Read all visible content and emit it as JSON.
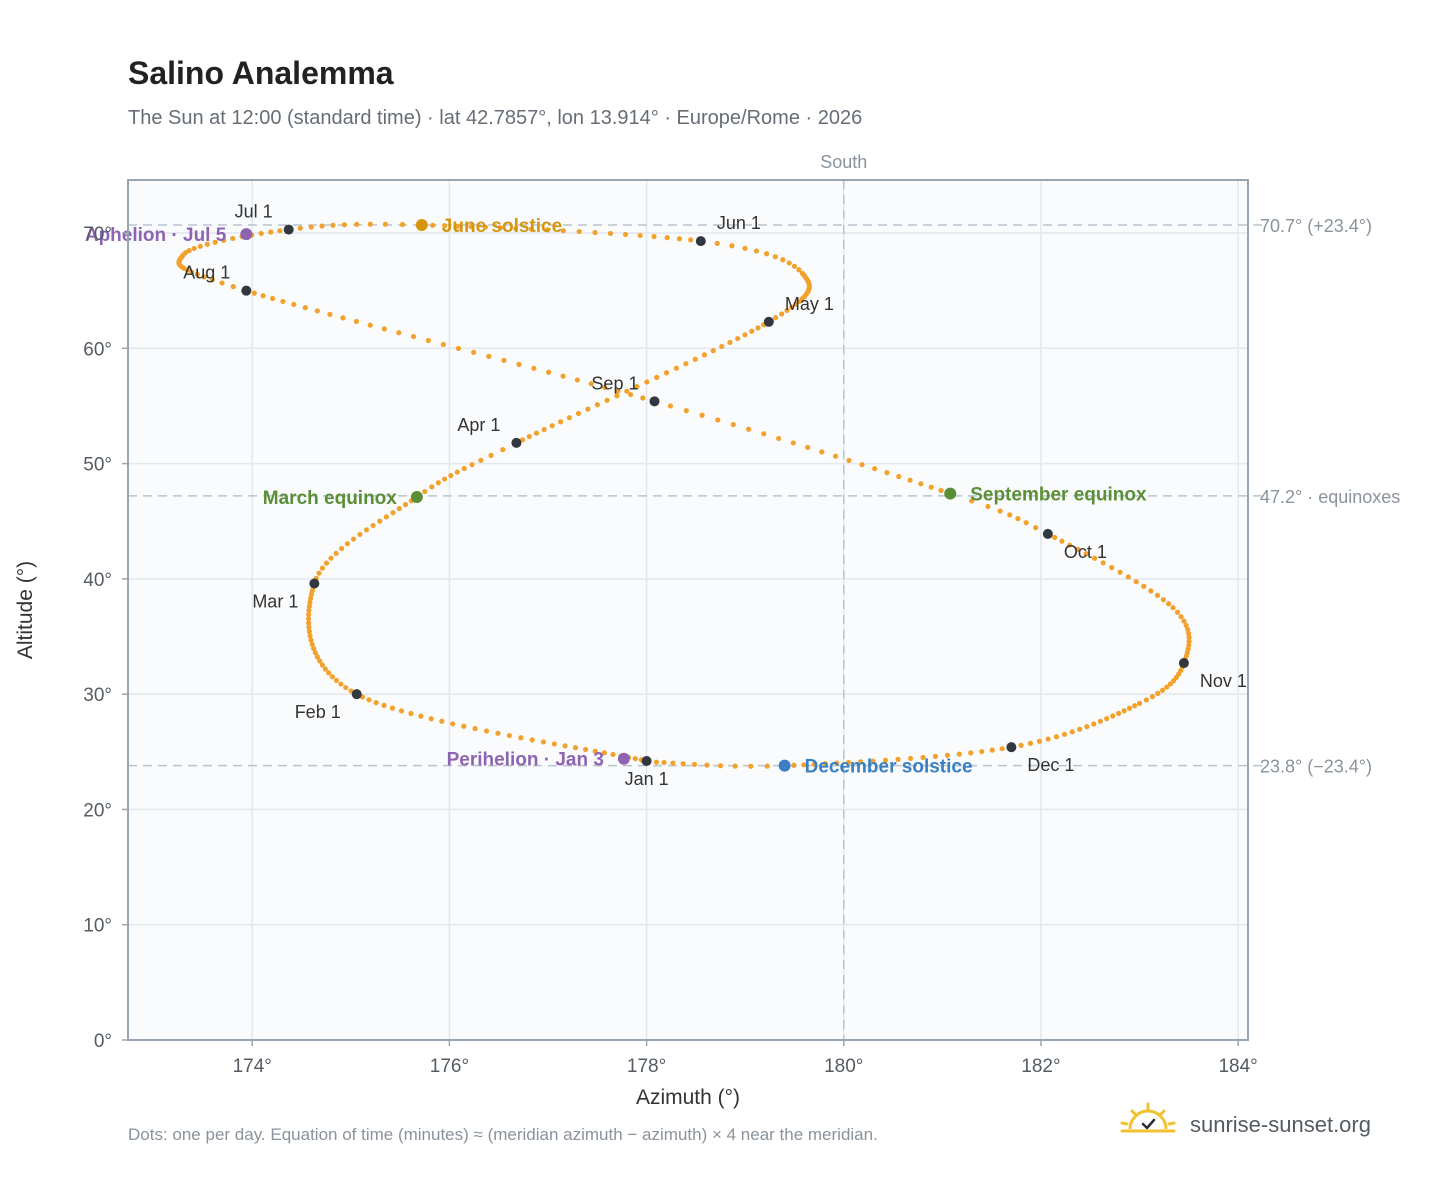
{
  "title": "Salino Analemma",
  "subtitle": "The Sun at 12:00 (standard time) · lat 42.7857°, lon 13.914° · Europe/Rome · 2026",
  "footnote": "Dots: one per day. Equation of time (minutes) ≈ (meridian azimuth − azimuth) × 4 near the meridian.",
  "brand": {
    "text": "sunrise-sunset.org",
    "icon": "sun-check-logo-icon",
    "color": "#f2c12e"
  },
  "colors": {
    "curve": "#f2a22c",
    "month_marker": "#333840",
    "june_solstice": "#d4960f",
    "december_solstice": "#3a7fc1",
    "equinox": "#5a8f36",
    "apsis": "#8e64b2",
    "grid": "#e3e8ee",
    "plot_bg": "#f9fbfd",
    "frame": "#9aa5b3",
    "reference_line": "#b9c4cf"
  },
  "chart_data": {
    "type": "scatter",
    "xlabel": "Azimuth (°)",
    "ylabel": "Altitude (°)",
    "xlim": [
      172.74,
      184.1
    ],
    "ylim": [
      0,
      74.6
    ],
    "x_ticks": [
      "174°",
      "176°",
      "178°",
      "180°",
      "182°",
      "184°"
    ],
    "x_tick_values": [
      174,
      176,
      178,
      180,
      182,
      184
    ],
    "y_ticks": [
      "0°",
      "10°",
      "20°",
      "30°",
      "40°",
      "50°",
      "60°",
      "70°"
    ],
    "y_tick_values": [
      0,
      10,
      20,
      30,
      40,
      50,
      60,
      70
    ],
    "grid": true,
    "meridian": {
      "azimuth": 180,
      "label": "South"
    },
    "reference_lines": [
      {
        "altitude": 70.7,
        "label": "70.7° (+23.4°)"
      },
      {
        "altitude": 47.2,
        "label": "47.2° · equinoxes"
      },
      {
        "altitude": 23.8,
        "label": "23.8° (−23.4°)"
      }
    ],
    "daily_path": {
      "name": "Sun position, one dot per day",
      "anchors": [
        {
          "day": 0,
          "az": 178.0,
          "alt": 24.2
        },
        {
          "day": 31,
          "az": 175.06,
          "alt": 30.0
        },
        {
          "day": 59,
          "az": 174.63,
          "alt": 39.6
        },
        {
          "day": 78,
          "az": 175.67,
          "alt": 47.1
        },
        {
          "day": 90,
          "az": 176.68,
          "alt": 51.8
        },
        {
          "day": 120,
          "az": 179.24,
          "alt": 62.3
        },
        {
          "day": 140,
          "az": 179.58,
          "alt": 66.5
        },
        {
          "day": 151,
          "az": 178.55,
          "alt": 69.3
        },
        {
          "day": 171,
          "az": 175.72,
          "alt": 70.7
        },
        {
          "day": 181,
          "az": 174.37,
          "alt": 70.3
        },
        {
          "day": 195,
          "az": 173.3,
          "alt": 68.1
        },
        {
          "day": 212,
          "az": 173.94,
          "alt": 65.0
        },
        {
          "day": 243,
          "az": 178.08,
          "alt": 55.4
        },
        {
          "day": 265,
          "az": 181.08,
          "alt": 47.4
        },
        {
          "day": 273,
          "az": 182.07,
          "alt": 43.9
        },
        {
          "day": 290,
          "az": 183.34,
          "alt": 37.5
        },
        {
          "day": 304,
          "az": 183.45,
          "alt": 32.7
        },
        {
          "day": 316,
          "az": 183.0,
          "alt": 29.2
        },
        {
          "day": 334,
          "az": 181.7,
          "alt": 25.4
        },
        {
          "day": 354,
          "az": 179.4,
          "alt": 23.8
        },
        {
          "day": 364,
          "az": 178.1,
          "alt": 24.1
        }
      ]
    },
    "month_markers": [
      {
        "label": "Jan 1",
        "az": 178.0,
        "alt": 24.2,
        "anchor": "below"
      },
      {
        "label": "Feb 1",
        "az": 175.06,
        "alt": 30.0,
        "anchor": "below-left"
      },
      {
        "label": "Mar 1",
        "az": 174.63,
        "alt": 39.6,
        "anchor": "below-left"
      },
      {
        "label": "Apr 1",
        "az": 176.68,
        "alt": 51.8,
        "anchor": "above-left"
      },
      {
        "label": "May 1",
        "az": 179.24,
        "alt": 62.3,
        "anchor": "above-right"
      },
      {
        "label": "Jun 1",
        "az": 178.55,
        "alt": 69.3,
        "anchor": "above-right"
      },
      {
        "label": "Jul 1",
        "az": 174.37,
        "alt": 70.3,
        "anchor": "above-left"
      },
      {
        "label": "Aug 1",
        "az": 173.94,
        "alt": 65.0,
        "anchor": "above-left"
      },
      {
        "label": "Sep 1",
        "az": 178.08,
        "alt": 55.4,
        "anchor": "above-left"
      },
      {
        "label": "Oct 1",
        "az": 182.07,
        "alt": 43.9,
        "anchor": "below-right"
      },
      {
        "label": "Nov 1",
        "az": 183.45,
        "alt": 32.7,
        "anchor": "below-right"
      },
      {
        "label": "Dec 1",
        "az": 181.7,
        "alt": 25.4,
        "anchor": "below-right"
      }
    ],
    "events": [
      {
        "label": "June solstice",
        "az": 175.72,
        "alt": 70.7,
        "color": "#d4960f",
        "side": "right"
      },
      {
        "label": "March equinox",
        "az": 175.67,
        "alt": 47.1,
        "color": "#5a8f36",
        "side": "left"
      },
      {
        "label": "September equinox",
        "az": 181.08,
        "alt": 47.4,
        "color": "#5a8f36",
        "side": "right"
      },
      {
        "label": "December solstice",
        "az": 179.4,
        "alt": 23.8,
        "color": "#3a7fc1",
        "side": "right"
      },
      {
        "label": "Aphelion · Jul 5",
        "az": 173.94,
        "alt": 69.9,
        "color": "#8e64b2",
        "side": "left"
      },
      {
        "label": "Perihelion · Jan 3",
        "az": 177.77,
        "alt": 24.4,
        "color": "#8e64b2",
        "side": "left"
      }
    ]
  }
}
